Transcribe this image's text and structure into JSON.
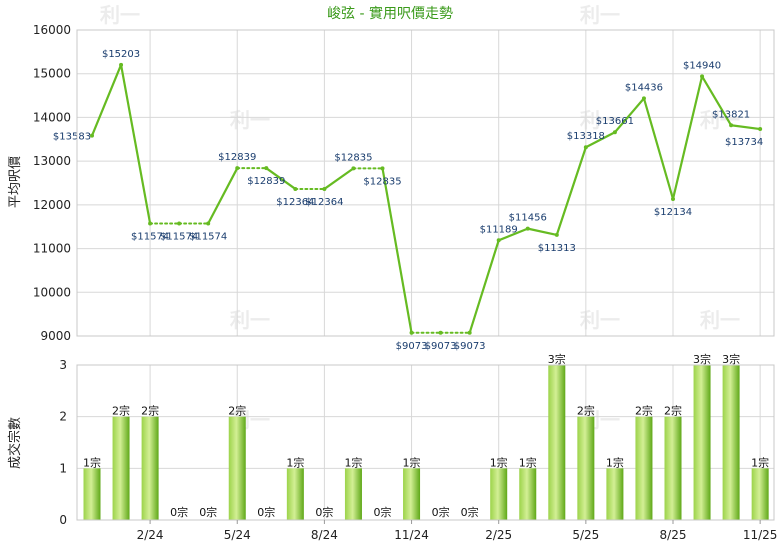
{
  "chart_data": [
    {
      "type": "line",
      "title": "峻弦 - 實用呎價走勢",
      "ylabel": "平均呎價",
      "ylim": [
        9000,
        16000
      ],
      "yticks": [
        9000,
        10000,
        11000,
        12000,
        13000,
        14000,
        15000,
        16000
      ],
      "grid": true,
      "x_tick_labels": [
        "2/24",
        "5/24",
        "8/24",
        "11/24",
        "2/25",
        "5/25",
        "8/25",
        "11/25"
      ],
      "points": [
        {
          "value": 13583,
          "label": "$13583",
          "has_deal": true
        },
        {
          "value": 15203,
          "label": "$15203",
          "has_deal": true
        },
        {
          "value": 11574,
          "label": "$11574",
          "has_deal": true
        },
        {
          "value": 11574,
          "label": "$11574",
          "has_deal": false
        },
        {
          "value": 11574,
          "label": "$11574",
          "has_deal": false
        },
        {
          "value": 12839,
          "label": "$12839",
          "has_deal": true
        },
        {
          "value": 12839,
          "label": "$12839",
          "has_deal": false
        },
        {
          "value": 12364,
          "label": "$12364",
          "has_deal": true
        },
        {
          "value": 12364,
          "label": "$12364",
          "has_deal": false
        },
        {
          "value": 12835,
          "label": "$12835",
          "has_deal": true
        },
        {
          "value": 12835,
          "label": "$12835",
          "has_deal": false
        },
        {
          "value": 9073,
          "label": "$9073",
          "has_deal": true
        },
        {
          "value": 9073,
          "label": "$9073",
          "has_deal": false
        },
        {
          "value": 9073,
          "label": "$9073",
          "has_deal": false
        },
        {
          "value": 11189,
          "label": "$11189",
          "has_deal": true
        },
        {
          "value": 11456,
          "label": "$11456",
          "has_deal": true
        },
        {
          "value": 11313,
          "label": "$11313",
          "has_deal": true
        },
        {
          "value": 13318,
          "label": "$13318",
          "has_deal": true
        },
        {
          "value": 13661,
          "label": "$13661",
          "has_deal": true
        },
        {
          "value": 14436,
          "label": "$14436",
          "has_deal": true
        },
        {
          "value": 12134,
          "label": "$12134",
          "has_deal": true
        },
        {
          "value": 14940,
          "label": "$14940",
          "has_deal": true
        },
        {
          "value": 13821,
          "label": "$13821",
          "has_deal": true
        },
        {
          "value": 13734,
          "label": "$13734",
          "has_deal": true
        }
      ]
    },
    {
      "type": "bar",
      "ylabel": "成交宗數",
      "ylim": [
        0,
        3
      ],
      "yticks": [
        0,
        1,
        2,
        3
      ],
      "grid": true,
      "x_tick_labels": [
        "2/24",
        "5/24",
        "8/24",
        "11/24",
        "2/25",
        "5/25",
        "8/25",
        "11/25"
      ],
      "values": [
        1,
        2,
        2,
        0,
        0,
        2,
        0,
        1,
        0,
        1,
        0,
        1,
        0,
        0,
        1,
        1,
        3,
        2,
        1,
        2,
        2,
        3,
        3,
        1
      ],
      "value_labels": [
        "1宗",
        "2宗",
        "2宗",
        "0宗",
        "0宗",
        "2宗",
        "0宗",
        "1宗",
        "0宗",
        "1宗",
        "0宗",
        "1宗",
        "0宗",
        "0宗",
        "1宗",
        "1宗",
        "3宗",
        "2宗",
        "1宗",
        "2宗",
        "2宗",
        "3宗",
        "3宗",
        "1宗"
      ]
    }
  ],
  "colors": {
    "line": "#66bb22",
    "bar_light": "#b8e070",
    "bar_dark": "#5fa818",
    "grid": "#d8d8d8",
    "title": "#3a9a1a"
  },
  "watermark": "利一"
}
